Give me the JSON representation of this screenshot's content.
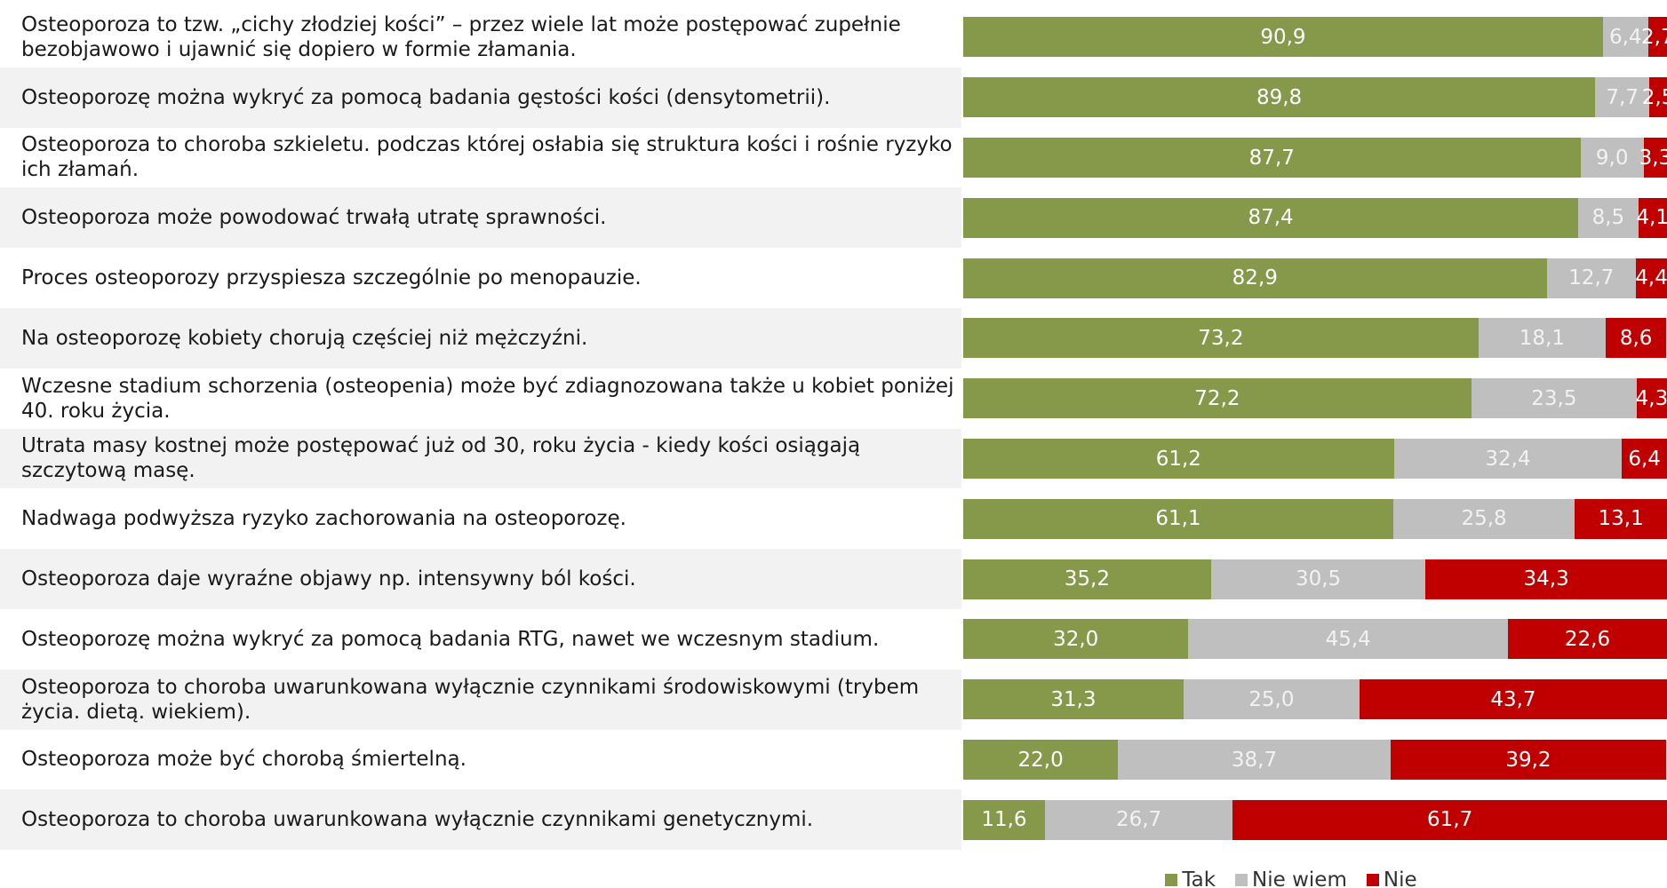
{
  "chart_data": {
    "type": "bar",
    "orientation": "horizontal",
    "stacked": true,
    "categories": [
      "Osteoporoza to tzw. „cichy złodziej kości” – przez wiele lat może postępować zupełnie bezobjawowo i ujawnić się dopiero w formie złamania.",
      "Osteoporozę można wykryć za pomocą badania gęstości kości (densytometrii).",
      "Osteoporoza to choroba szkieletu. podczas której osłabia się struktura kości i rośnie ryzyko ich złamań.",
      "Osteoporoza może powodować trwałą utratę sprawności.",
      "Proces osteoporozy przyspiesza szczególnie po menopauzie.",
      "Na osteoporozę kobiety chorują częściej niż mężczyźni.",
      "Wczesne stadium schorzenia (osteopenia) może być zdiagnozowana także u kobiet poniżej 40. roku życia.",
      "Utrata masy kostnej może postępować już od 30, roku życia - kiedy kości osiągają szczytową masę.",
      "Nadwaga podwyższa ryzyko zachorowania na osteoporozę.",
      "Osteoporoza daje wyraźne objawy np. intensywny ból kości.",
      "Osteoporozę można wykryć za pomocą badania RTG, nawet we wczesnym stadium.",
      "Osteoporoza to choroba uwarunkowana wyłącznie czynnikami środowiskowymi (trybem życia. dietą. wiekiem).",
      "Osteoporoza może być chorobą śmiertelną.",
      "Osteoporoza to choroba uwarunkowana wyłącznie czynnikami genetycznymi."
    ],
    "series": [
      {
        "name": "Tak",
        "color": "#86994a",
        "values": [
          90.9,
          89.8,
          87.7,
          87.4,
          82.9,
          73.2,
          72.2,
          61.2,
          61.1,
          35.2,
          32.0,
          31.3,
          22.0,
          11.6
        ],
        "value_labels": [
          "90,9",
          "89,8",
          "87,7",
          "87,4",
          "82,9",
          "73,2",
          "72,2",
          "61,2",
          "61,1",
          "35,2",
          "32,0",
          "31,3",
          "22,0",
          "11,6"
        ]
      },
      {
        "name": "Nie wiem",
        "color": "#bfbfbf",
        "values": [
          6.4,
          7.7,
          9.0,
          8.5,
          12.7,
          18.1,
          23.5,
          32.4,
          25.8,
          30.5,
          45.4,
          25.0,
          38.7,
          26.7
        ],
        "value_labels": [
          "6,4",
          "7,7",
          "9,0",
          "8,5",
          "12,7",
          "18,1",
          "23,5",
          "32,4",
          "25,8",
          "30,5",
          "45,4",
          "25,0",
          "38,7",
          "26,7"
        ]
      },
      {
        "name": "Nie",
        "color": "#c00000",
        "values": [
          2.7,
          2.5,
          3.3,
          4.1,
          4.4,
          8.6,
          4.3,
          6.4,
          13.1,
          34.3,
          22.6,
          43.7,
          39.2,
          61.7
        ],
        "value_labels": [
          "2,7",
          "2,5",
          "3,3",
          "4,1",
          "4,4",
          "8,6",
          "4,3",
          "6,4",
          "13,1",
          "34,3",
          "22,6",
          "43,7",
          "39,2",
          "61,7"
        ]
      }
    ],
    "legend": "bottom"
  }
}
